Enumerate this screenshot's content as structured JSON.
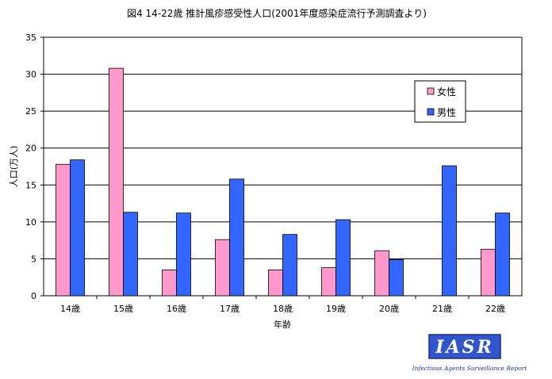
{
  "chart_data": {
    "type": "bar",
    "title": "図4 14-22歳 推計風疹感受性人口(2001年度感染症流行予測調査より)",
    "xlabel": "年齢",
    "ylabel": "人口(万人)",
    "categories": [
      "14歳",
      "15歳",
      "16歳",
      "17歳",
      "18歳",
      "19歳",
      "20歳",
      "21歳",
      "22歳"
    ],
    "series": [
      {
        "name": "女性",
        "color": "#ff99cc",
        "values": [
          17.8,
          30.8,
          3.5,
          7.6,
          3.5,
          3.8,
          6.1,
          0,
          6.3
        ]
      },
      {
        "name": "男性",
        "color": "#3366ff",
        "values": [
          18.4,
          11.3,
          11.2,
          15.8,
          8.3,
          10.3,
          4.9,
          17.6,
          11.2
        ]
      }
    ],
    "ylim": [
      0,
      35
    ],
    "yticks": [
      0,
      5,
      10,
      15,
      20,
      25,
      30,
      35
    ],
    "grid": true,
    "legend_position": "top-right"
  },
  "logo": {
    "text": "IASR",
    "subtitle": "Infectious Agents Surveillance Report",
    "color": "#3355cc"
  }
}
